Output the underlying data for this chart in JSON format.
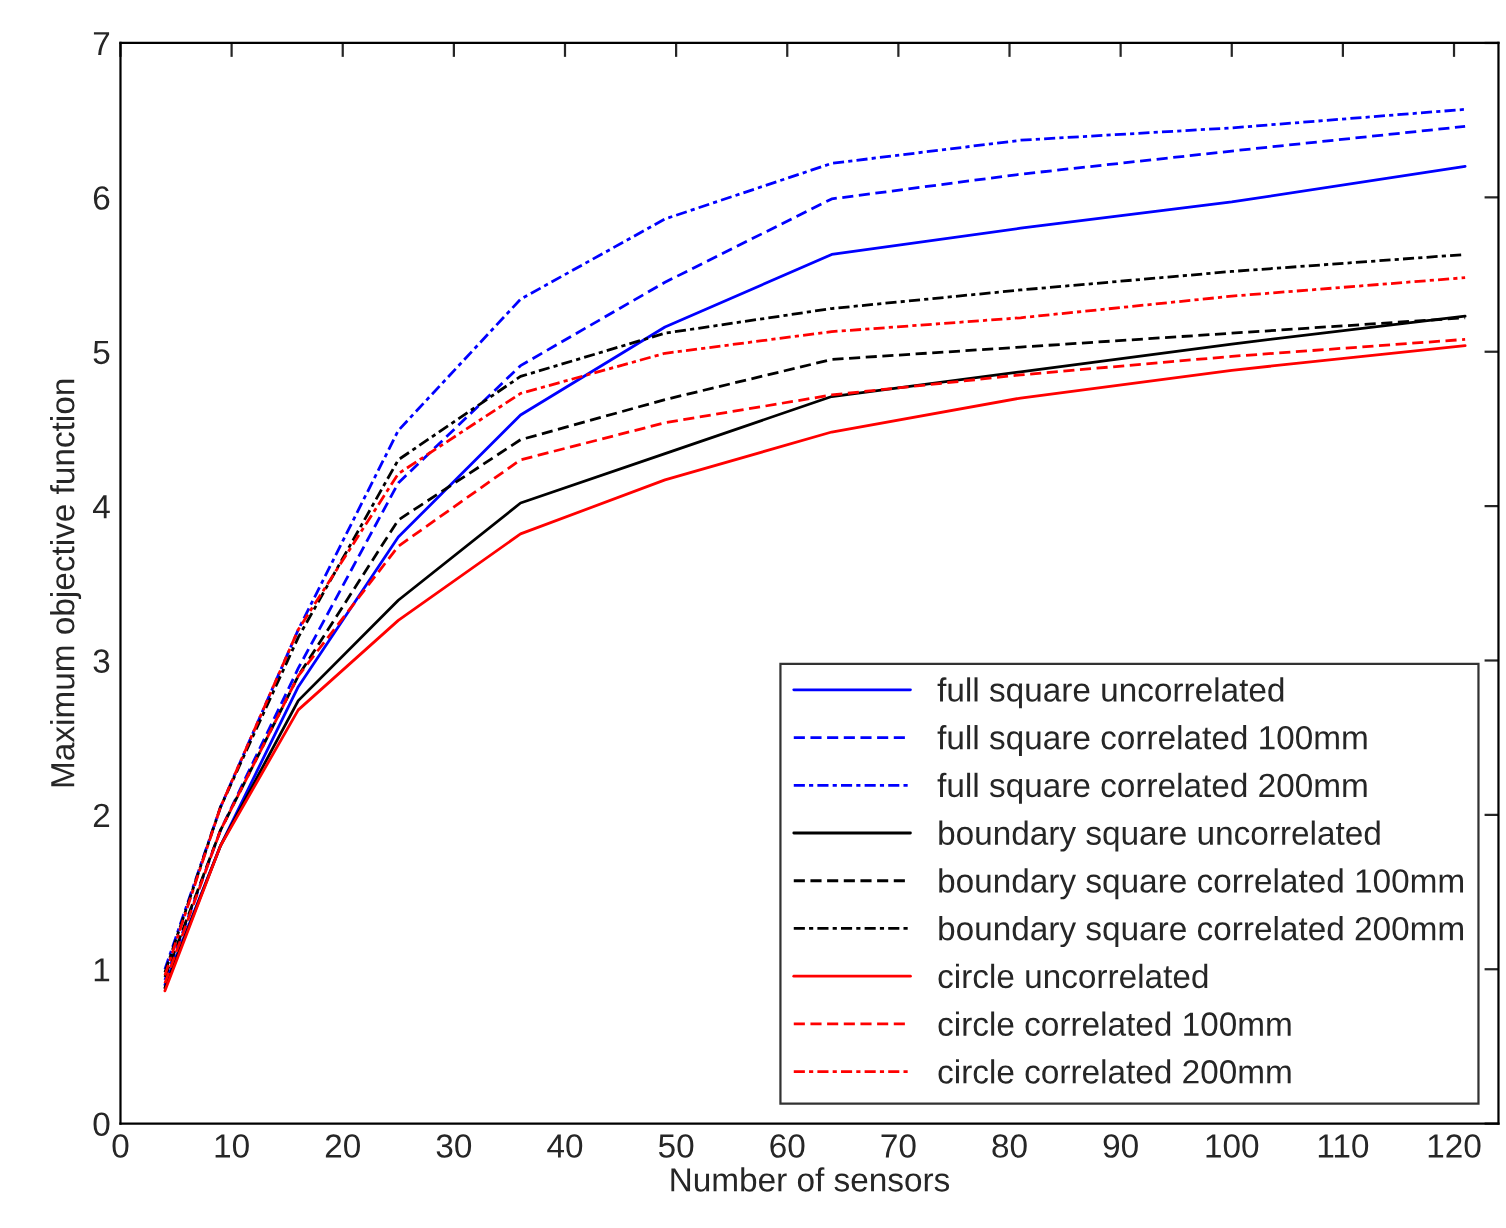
{
  "chart_data": {
    "type": "line",
    "xlabel": "Number of sensors",
    "ylabel": "Maximum objective function",
    "x": [
      4,
      9,
      16,
      25,
      36,
      49,
      64,
      81,
      100,
      121
    ],
    "xlim": [
      0,
      124
    ],
    "xticks": [
      0,
      10,
      20,
      30,
      40,
      50,
      60,
      70,
      80,
      90,
      100,
      110,
      120
    ],
    "ylim": [
      0,
      7
    ],
    "yticks": [
      0,
      1,
      2,
      3,
      4,
      5,
      6,
      7
    ],
    "grid": false,
    "legend": "bottom right",
    "marker": "none",
    "series": [
      {
        "name": "full square uncorrelated",
        "color": "#0000ff",
        "line_style": "solid",
        "values": [
          0.9,
          1.8,
          2.83,
          3.8,
          4.59,
          5.16,
          5.63,
          5.8,
          5.97,
          6.2
        ]
      },
      {
        "name": "full square correlated 100mm",
        "color": "#0000ff",
        "line_style": "dashed",
        "values": [
          0.93,
          1.9,
          2.95,
          4.15,
          4.91,
          5.45,
          5.99,
          6.15,
          6.3,
          6.46
        ]
      },
      {
        "name": "full square correlated 200mm",
        "color": "#0000ff",
        "line_style": "dashdot",
        "values": [
          1.0,
          2.05,
          3.2,
          4.49,
          5.34,
          5.86,
          6.22,
          6.37,
          6.45,
          6.57
        ]
      },
      {
        "name": "boundary square uncorrelated",
        "color": "#000000",
        "line_style": "solid",
        "values": [
          0.88,
          1.8,
          2.74,
          3.39,
          4.02,
          4.34,
          4.71,
          4.87,
          5.05,
          5.23
        ]
      },
      {
        "name": "boundary square correlated 100mm",
        "color": "#000000",
        "line_style": "dashed",
        "values": [
          0.95,
          1.9,
          2.9,
          3.91,
          4.43,
          4.69,
          4.95,
          5.03,
          5.12,
          5.22
        ]
      },
      {
        "name": "boundary square correlated 200mm",
        "color": "#000000",
        "line_style": "dashdot",
        "values": [
          0.98,
          2.05,
          3.15,
          4.3,
          4.84,
          5.12,
          5.28,
          5.4,
          5.52,
          5.63
        ]
      },
      {
        "name": "circle uncorrelated",
        "color": "#ff0000",
        "line_style": "solid",
        "values": [
          0.86,
          1.8,
          2.68,
          3.26,
          3.82,
          4.17,
          4.48,
          4.7,
          4.88,
          5.04
        ]
      },
      {
        "name": "circle correlated 100mm",
        "color": "#ff0000",
        "line_style": "dashed",
        "values": [
          0.91,
          1.9,
          2.9,
          3.74,
          4.3,
          4.54,
          4.72,
          4.85,
          4.97,
          5.08
        ]
      },
      {
        "name": "circle correlated 200mm",
        "color": "#ff0000",
        "line_style": "dashdot",
        "values": [
          0.96,
          2.05,
          3.2,
          4.21,
          4.73,
          4.99,
          5.13,
          5.22,
          5.36,
          5.48
        ]
      }
    ]
  }
}
